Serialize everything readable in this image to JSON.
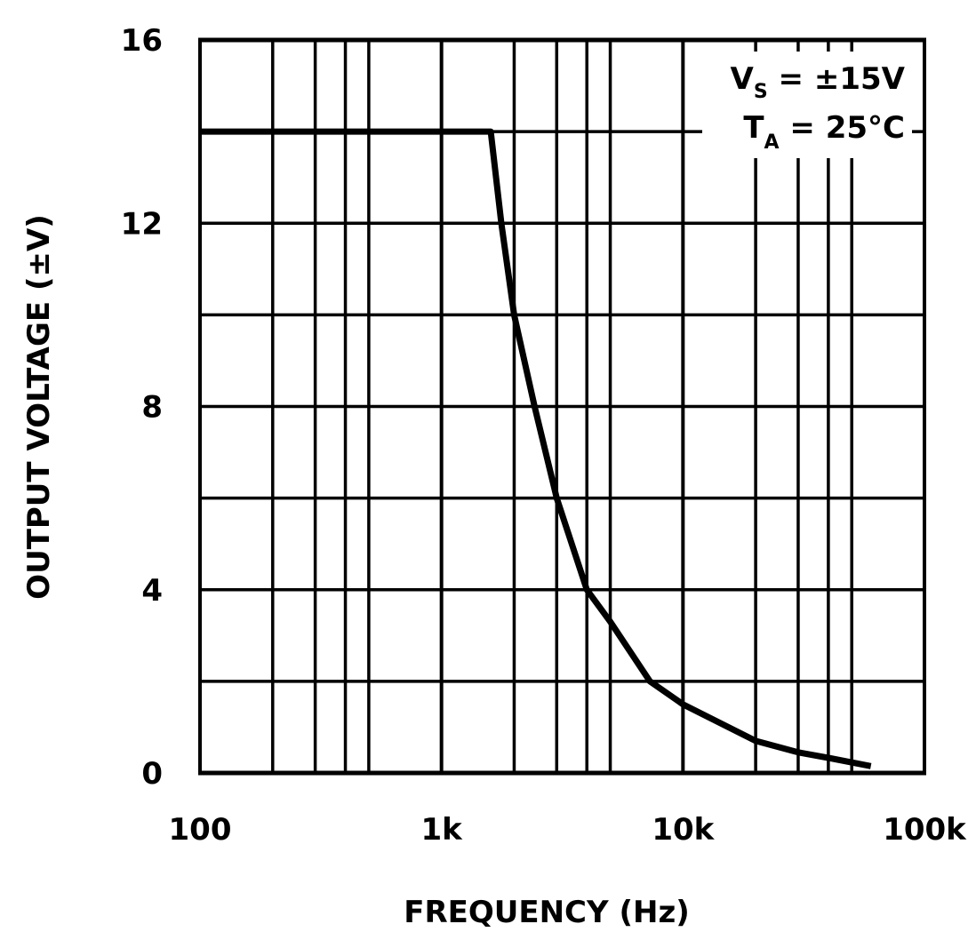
{
  "chart_data": {
    "type": "line",
    "xlabel": "FREQUENCY (Hz)",
    "ylabel": "OUTPUT VOLTAGE (±V)",
    "x_scale": "log",
    "xlim": [
      100,
      100000
    ],
    "ylim": [
      0,
      16
    ],
    "x_ticks": [
      {
        "value": 100,
        "label": "100"
      },
      {
        "value": 1000,
        "label": "1k"
      },
      {
        "value": 10000,
        "label": "10k"
      },
      {
        "value": 100000,
        "label": "100k"
      }
    ],
    "y_ticks": [
      {
        "value": 0,
        "label": "0"
      },
      {
        "value": 4,
        "label": "4"
      },
      {
        "value": 8,
        "label": "8"
      },
      {
        "value": 12,
        "label": "12"
      },
      {
        "value": 16,
        "label": "16"
      }
    ],
    "grid": true,
    "y_grid_step": 2,
    "x_grid_multiples": [
      1,
      2,
      3,
      4,
      5
    ],
    "annotations": [
      {
        "main": "V",
        "sub": "S",
        "rest": " = ±15V"
      },
      {
        "main": "T",
        "sub": "A",
        "rest": " = 25°C"
      }
    ],
    "line_color": "#000000",
    "series": [
      {
        "x": [
          100,
          1600,
          1770,
          2000,
          2430,
          3000,
          4000,
          5000,
          7300,
          10000,
          20000,
          30000,
          40000,
          60000
        ],
        "y": [
          14,
          14,
          12,
          10,
          8,
          6,
          4,
          3.3,
          2,
          1.5,
          0.7,
          0.45,
          0.33,
          0.15
        ]
      }
    ]
  }
}
